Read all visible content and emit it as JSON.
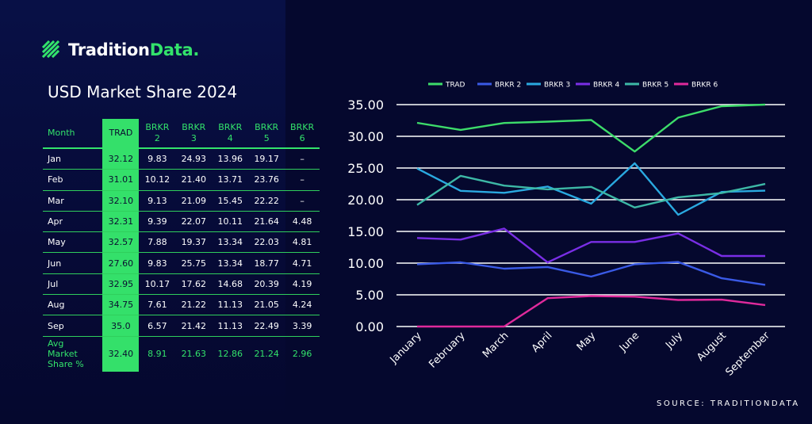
{
  "brand": {
    "name_part1": "Tradition",
    "name_part2": "Data."
  },
  "title": "USD Market Share 2024",
  "table": {
    "headers": [
      "Month",
      "TRAD",
      "BRKR\n2",
      "BRKR\n3",
      "BRKR\n4",
      "BRKR\n5",
      "BRKR\n6"
    ],
    "rows": [
      [
        "Jan",
        "32.12",
        "9.83",
        "24.93",
        "13.96",
        "19.17",
        "–"
      ],
      [
        "Feb",
        "31.01",
        "10.12",
        "21.40",
        "13.71",
        "23.76",
        "–"
      ],
      [
        "Mar",
        "32.10",
        "9.13",
        "21.09",
        "15.45",
        "22.22",
        "–"
      ],
      [
        "Apr",
        "32.31",
        "9.39",
        "22.07",
        "10.11",
        "21.64",
        "4.48"
      ],
      [
        "May",
        "32.57",
        "7.88",
        "19.37",
        "13.34",
        "22.03",
        "4.81"
      ],
      [
        "Jun",
        "27.60",
        "9.83",
        "25.75",
        "13.34",
        "18.77",
        "4.71"
      ],
      [
        "Jul",
        "32.95",
        "10.17",
        "17.62",
        "14.68",
        "20.39",
        "4.19"
      ],
      [
        "Aug",
        "34.75",
        "7.61",
        "21.22",
        "11.13",
        "21.05",
        "4.24"
      ],
      [
        "Sep",
        "35.0",
        "6.57",
        "21.42",
        "11.13",
        "22.49",
        "3.39"
      ]
    ],
    "avg_row": [
      "Avg\nMarket\nShare %",
      "32.40",
      "8.91",
      "21.63",
      "12.86",
      "21.24",
      "2.96"
    ]
  },
  "source": "SOURCE: TRADITIONDATA",
  "colors": {
    "accent": "#33e36b",
    "background": "#05082e"
  },
  "chart_data": {
    "type": "line",
    "title": "",
    "xlabel": "",
    "ylabel": "",
    "x": [
      "January",
      "February",
      "March",
      "April",
      "May",
      "June",
      "July",
      "August",
      "September"
    ],
    "ylim": [
      0,
      35
    ],
    "yticks": [
      "0.00",
      "5.00",
      "10.00",
      "15.00",
      "20.00",
      "25.00",
      "30.00",
      "35.00"
    ],
    "grid": true,
    "legend": "top",
    "series": [
      {
        "name": "TRAD",
        "color": "#3ddc6a",
        "values": [
          32.12,
          31.01,
          32.1,
          32.31,
          32.57,
          27.6,
          32.95,
          34.75,
          35.0
        ]
      },
      {
        "name": "BRKR 2",
        "color": "#3a5ae6",
        "values": [
          9.83,
          10.12,
          9.13,
          9.39,
          7.88,
          9.83,
          10.17,
          7.61,
          6.57
        ]
      },
      {
        "name": "BRKR 3",
        "color": "#2aa9e0",
        "values": [
          24.93,
          21.4,
          21.09,
          22.07,
          19.37,
          25.75,
          17.62,
          21.22,
          21.42
        ]
      },
      {
        "name": "BRKR 4",
        "color": "#7a2ee6",
        "values": [
          13.96,
          13.71,
          15.45,
          10.11,
          13.34,
          13.34,
          14.68,
          11.13,
          11.13
        ]
      },
      {
        "name": "BRKR 5",
        "color": "#3db8a6",
        "values": [
          19.17,
          23.76,
          22.22,
          21.64,
          22.03,
          18.77,
          20.39,
          21.05,
          22.49
        ]
      },
      {
        "name": "BRKR 6",
        "color": "#e02a9c",
        "values": [
          0,
          0,
          0,
          4.48,
          4.81,
          4.71,
          4.19,
          4.24,
          3.39
        ]
      }
    ]
  }
}
